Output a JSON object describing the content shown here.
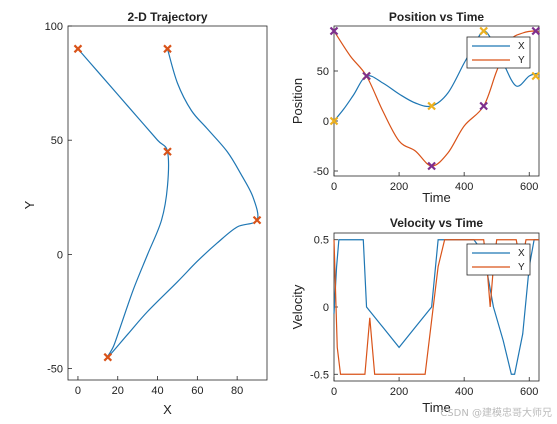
{
  "colors": {
    "x": "#1f77b4",
    "y": "#d95319",
    "marker_traj": "#d95319",
    "marker_x": "#edb120",
    "marker_y": "#7e2f8e"
  },
  "watermark": "CSDN @建模忠哥大师兄",
  "chart_data": [
    {
      "type": "line",
      "title": "2-D Trajectory",
      "xlabel": "X",
      "ylabel": "Y",
      "xlim": [
        -5,
        95
      ],
      "ylim": [
        -55,
        100
      ],
      "xticks": [
        0,
        20,
        40,
        60,
        80
      ],
      "yticks": [
        -50,
        0,
        50,
        100
      ],
      "grid": false,
      "path": [
        [
          0,
          90
        ],
        [
          10,
          80
        ],
        [
          20,
          70
        ],
        [
          30,
          60
        ],
        [
          40,
          50
        ],
        [
          45,
          45
        ],
        [
          45,
          30
        ],
        [
          42,
          15
        ],
        [
          35,
          0
        ],
        [
          28,
          -15
        ],
        [
          22,
          -30
        ],
        [
          18,
          -40
        ],
        [
          15,
          -45
        ],
        [
          25,
          -35
        ],
        [
          35,
          -25
        ],
        [
          50,
          -12
        ],
        [
          60,
          -3
        ],
        [
          70,
          5
        ],
        [
          80,
          12
        ],
        [
          90,
          15
        ],
        [
          88,
          25
        ],
        [
          82,
          35
        ],
        [
          75,
          45
        ],
        [
          65,
          55
        ],
        [
          57,
          63
        ],
        [
          50,
          75
        ],
        [
          45,
          90
        ]
      ],
      "waypoints": [
        [
          0,
          90
        ],
        [
          45,
          45
        ],
        [
          15,
          -45
        ],
        [
          90,
          15
        ],
        [
          45,
          90
        ]
      ]
    },
    {
      "type": "line",
      "title": "Position vs Time",
      "xlabel": "Time",
      "ylabel": "Position",
      "xlim": [
        0,
        630
      ],
      "ylim": [
        -55,
        95
      ],
      "xticks": [
        0,
        200,
        400,
        600
      ],
      "yticks": [
        -50,
        0,
        50
      ],
      "legend": "top-right",
      "series": [
        {
          "name": "X",
          "t": [
            0,
            30,
            60,
            100,
            150,
            200,
            250,
            300,
            350,
            400,
            430,
            460,
            490,
            520,
            560,
            600,
            630
          ],
          "values": [
            0,
            12,
            26,
            45,
            38,
            27,
            18,
            15,
            28,
            58,
            75,
            90,
            78,
            58,
            35,
            45,
            48
          ]
        },
        {
          "name": "Y",
          "t": [
            0,
            50,
            100,
            150,
            200,
            250,
            300,
            350,
            400,
            460,
            500,
            540,
            580,
            620,
            630
          ],
          "values": [
            90,
            65,
            45,
            10,
            -20,
            -30,
            -45,
            -32,
            -5,
            15,
            50,
            80,
            88,
            90,
            88
          ]
        }
      ],
      "waypoints_x": [
        [
          0,
          0
        ],
        [
          100,
          45
        ],
        [
          300,
          15
        ],
        [
          460,
          90
        ],
        [
          620,
          45
        ]
      ],
      "waypoints_y": [
        [
          0,
          90
        ],
        [
          100,
          45
        ],
        [
          300,
          -45
        ],
        [
          460,
          15
        ],
        [
          620,
          90
        ]
      ]
    },
    {
      "type": "line",
      "title": "Velocity vs Time",
      "xlabel": "Time",
      "ylabel": "Velocity",
      "xlim": [
        0,
        630
      ],
      "ylim": [
        -0.55,
        0.55
      ],
      "xticks": [
        0,
        200,
        400,
        600
      ],
      "yticks": [
        -0.5,
        0,
        0.5
      ],
      "legend": "top-right",
      "series": [
        {
          "name": "X",
          "t": [
            0,
            8,
            15,
            25,
            90,
            100,
            150,
            200,
            250,
            300,
            320,
            340,
            430,
            460,
            490,
            520,
            545,
            555,
            580,
            600,
            615,
            630
          ],
          "values": [
            -0.05,
            0.3,
            0.5,
            0.5,
            0.5,
            0,
            -0.15,
            -0.3,
            -0.15,
            0,
            0.5,
            0.5,
            0.5,
            0.4,
            0,
            -0.25,
            -0.5,
            -0.5,
            -0.2,
            0.3,
            0.5,
            0.5
          ]
        },
        {
          "name": "Y",
          "t": [
            0,
            10,
            20,
            80,
            95,
            110,
            125,
            140,
            280,
            300,
            320,
            340,
            360,
            460,
            470,
            480,
            490,
            500,
            560,
            575,
            590,
            630
          ],
          "values": [
            0.5,
            -0.3,
            -0.5,
            -0.5,
            -0.5,
            -0.08,
            -0.5,
            -0.5,
            -0.5,
            -0.1,
            0.3,
            0.5,
            0.5,
            0.5,
            0.3,
            0.0,
            0.3,
            0.5,
            0.5,
            0.3,
            0.5,
            0.5
          ]
        }
      ]
    }
  ]
}
